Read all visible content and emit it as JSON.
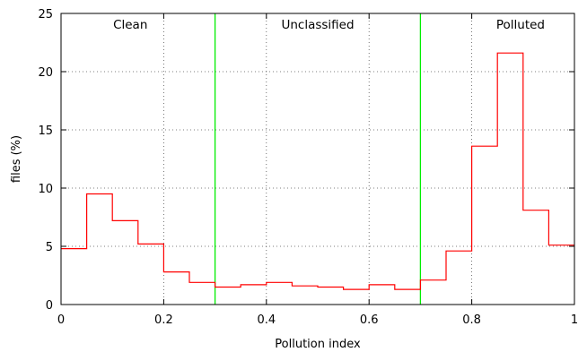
{
  "chart_data": {
    "type": "histogram-step",
    "xlabel": "Pollution index",
    "ylabel": "files (%)",
    "xlim": [
      0,
      1
    ],
    "ylim": [
      0,
      25
    ],
    "x_ticks": [
      0,
      0.2,
      0.4,
      0.6,
      0.8,
      1
    ],
    "x_tick_labels": [
      "0",
      "0.2",
      "0.4",
      "0.6",
      "0.8",
      "1"
    ],
    "y_ticks": [
      0,
      5,
      10,
      15,
      20,
      25
    ],
    "y_tick_labels": [
      "0",
      "5",
      "10",
      "15",
      "20",
      "25"
    ],
    "grid": "dotted",
    "bin_width": 0.05,
    "bin_starts": [
      0,
      0.05,
      0.1,
      0.15,
      0.2,
      0.25,
      0.3,
      0.35,
      0.4,
      0.45,
      0.5,
      0.55,
      0.6,
      0.65,
      0.7,
      0.75,
      0.8,
      0.85,
      0.9,
      0.95
    ],
    "values": [
      4.8,
      9.5,
      7.2,
      5.2,
      2.8,
      1.9,
      1.5,
      1.7,
      1.9,
      1.6,
      1.5,
      1.3,
      1.7,
      1.3,
      2.1,
      4.6,
      13.6,
      21.6,
      8.1,
      5.1
    ],
    "series_color": "#ff0000",
    "thresholds": [
      0.3,
      0.7
    ],
    "threshold_color": "#00ee00",
    "regions": [
      {
        "label": "Clean",
        "x": 0.135
      },
      {
        "label": "Unclassified",
        "x": 0.5
      },
      {
        "label": "Polluted",
        "x": 0.895
      }
    ]
  }
}
